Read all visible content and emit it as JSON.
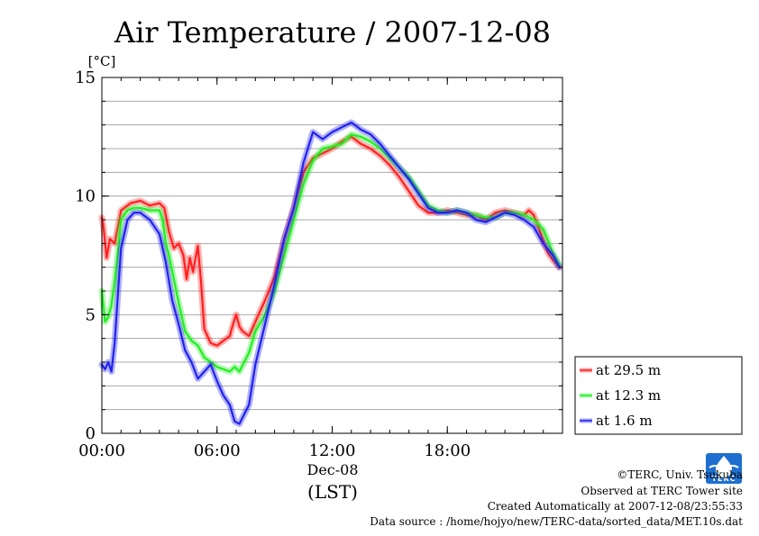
{
  "chart_data": {
    "type": "line",
    "title": "Air Temperature / 2007-12-08",
    "ylabel": "[°C]",
    "xlabel": "(LST)",
    "x_sublabel": "Dec-08",
    "ylim": [
      0,
      15
    ],
    "xlim": [
      "00:00",
      "24:00"
    ],
    "yticks": [
      {
        "value": 0,
        "label": "0"
      },
      {
        "value": 5,
        "label": "5"
      },
      {
        "value": 10,
        "label": "10"
      },
      {
        "value": 15,
        "label": "15"
      }
    ],
    "xticks": [
      {
        "value": "00:00",
        "label": "00:00"
      },
      {
        "value": "06:00",
        "label": "06:00"
      },
      {
        "value": "12:00",
        "label": "12:00"
      },
      {
        "value": "18:00",
        "label": "18:00"
      }
    ],
    "grid": true,
    "legend_position": "right",
    "series": [
      {
        "name": "at 29.5 m",
        "color": "#ff2020",
        "x": [
          "00:00",
          "00:05",
          "00:15",
          "00:25",
          "00:40",
          "01:00",
          "01:30",
          "02:00",
          "02:30",
          "03:00",
          "03:15",
          "03:30",
          "03:45",
          "04:00",
          "04:15",
          "04:25",
          "04:35",
          "04:45",
          "05:00",
          "05:10",
          "05:20",
          "05:40",
          "06:00",
          "06:20",
          "06:40",
          "06:50",
          "07:00",
          "07:10",
          "07:20",
          "07:40",
          "08:00",
          "08:30",
          "09:00",
          "09:30",
          "10:00",
          "10:30",
          "11:00",
          "11:30",
          "12:00",
          "12:30",
          "13:00",
          "13:30",
          "14:00",
          "14:30",
          "15:00",
          "15:30",
          "16:00",
          "16:30",
          "17:00",
          "17:30",
          "18:00",
          "18:30",
          "19:00",
          "19:30",
          "20:00",
          "20:30",
          "21:00",
          "21:30",
          "22:00",
          "22:15",
          "22:30",
          "22:45",
          "23:00",
          "23:15",
          "23:30",
          "23:50"
        ],
        "values": [
          9.1,
          8.7,
          7.4,
          8.2,
          8.0,
          9.4,
          9.7,
          9.8,
          9.6,
          9.7,
          9.5,
          8.5,
          7.8,
          8.0,
          7.5,
          6.5,
          7.4,
          6.8,
          7.9,
          6.4,
          4.4,
          3.8,
          3.7,
          3.9,
          4.1,
          4.6,
          5.0,
          4.5,
          4.3,
          4.1,
          4.7,
          5.6,
          6.6,
          8.2,
          9.5,
          11.0,
          11.6,
          11.8,
          12.0,
          12.3,
          12.5,
          12.2,
          12.0,
          11.7,
          11.3,
          10.8,
          10.2,
          9.6,
          9.3,
          9.3,
          9.4,
          9.3,
          9.2,
          9.2,
          9.0,
          9.3,
          9.4,
          9.3,
          9.2,
          9.4,
          9.2,
          8.7,
          8.1,
          7.6,
          7.3,
          7.0
        ]
      },
      {
        "name": "at 12.3 m",
        "color": "#22ee22",
        "x": [
          "00:00",
          "00:10",
          "00:20",
          "00:30",
          "00:40",
          "00:50",
          "01:00",
          "01:20",
          "01:40",
          "02:00",
          "02:30",
          "03:00",
          "03:10",
          "03:20",
          "03:30",
          "03:45",
          "04:00",
          "04:20",
          "04:40",
          "05:00",
          "05:20",
          "05:40",
          "06:00",
          "06:20",
          "06:40",
          "06:55",
          "07:10",
          "07:25",
          "07:40",
          "08:00",
          "08:30",
          "09:00",
          "09:30",
          "10:00",
          "10:30",
          "11:00",
          "11:30",
          "12:00",
          "12:30",
          "13:00",
          "13:30",
          "14:00",
          "14:30",
          "15:00",
          "15:30",
          "16:00",
          "16:30",
          "17:00",
          "17:30",
          "18:00",
          "18:30",
          "19:00",
          "19:30",
          "20:00",
          "20:30",
          "21:00",
          "21:30",
          "22:00",
          "22:30",
          "23:00",
          "23:30",
          "23:50"
        ],
        "values": [
          6.0,
          4.7,
          4.9,
          5.4,
          6.4,
          7.6,
          9.0,
          9.4,
          9.5,
          9.5,
          9.4,
          9.4,
          9.0,
          8.0,
          7.5,
          6.5,
          5.5,
          4.3,
          3.9,
          3.7,
          3.2,
          3.0,
          2.8,
          2.7,
          2.6,
          2.8,
          2.6,
          3.0,
          3.4,
          4.3,
          5.0,
          6.0,
          7.5,
          9.0,
          10.5,
          11.5,
          12.0,
          12.1,
          12.2,
          12.6,
          12.5,
          12.3,
          12.0,
          11.6,
          11.2,
          10.8,
          10.2,
          9.6,
          9.4,
          9.3,
          9.4,
          9.3,
          9.2,
          9.1,
          9.1,
          9.3,
          9.3,
          9.2,
          9.0,
          8.6,
          7.6,
          7.1
        ]
      },
      {
        "name": "at 1.6 m",
        "color": "#2222ee",
        "x": [
          "00:00",
          "00:10",
          "00:20",
          "00:30",
          "00:40",
          "00:50",
          "01:00",
          "01:20",
          "01:40",
          "02:00",
          "02:30",
          "03:00",
          "03:20",
          "03:40",
          "04:00",
          "04:20",
          "04:40",
          "05:00",
          "05:20",
          "05:40",
          "06:00",
          "06:20",
          "06:40",
          "06:55",
          "07:10",
          "07:25",
          "07:40",
          "08:00",
          "08:30",
          "09:00",
          "09:30",
          "10:00",
          "10:30",
          "11:00",
          "11:30",
          "12:00",
          "12:30",
          "13:00",
          "13:30",
          "14:00",
          "14:30",
          "15:00",
          "15:30",
          "16:00",
          "16:30",
          "17:00",
          "17:30",
          "18:00",
          "18:30",
          "19:00",
          "19:30",
          "20:00",
          "20:30",
          "21:00",
          "21:30",
          "22:00",
          "22:30",
          "23:00",
          "23:30",
          "23:50"
        ],
        "values": [
          2.9,
          2.7,
          3.0,
          2.6,
          3.8,
          5.8,
          7.8,
          9.0,
          9.3,
          9.3,
          9.0,
          8.4,
          7.2,
          5.6,
          4.6,
          3.5,
          3.0,
          2.3,
          2.6,
          2.9,
          2.2,
          1.6,
          1.2,
          0.5,
          0.4,
          0.8,
          1.2,
          2.9,
          4.6,
          6.3,
          8.2,
          9.5,
          11.4,
          12.7,
          12.4,
          12.7,
          12.9,
          13.1,
          12.8,
          12.6,
          12.2,
          11.7,
          11.2,
          10.7,
          10.1,
          9.5,
          9.3,
          9.3,
          9.4,
          9.3,
          9.0,
          8.9,
          9.1,
          9.3,
          9.2,
          9.0,
          8.7,
          8.0,
          7.5,
          7.0
        ]
      }
    ]
  },
  "footer": {
    "copyright": "©TERC, Univ. Tsukuba",
    "observed": "Observed at TERC Tower site",
    "created": "Created Automatically at 2007-12-08/23:55:33",
    "source": "Data source : /home/hojyo/new/TERC-data/sorted_data/MET.10s.dat",
    "logo_text": "TERC"
  }
}
